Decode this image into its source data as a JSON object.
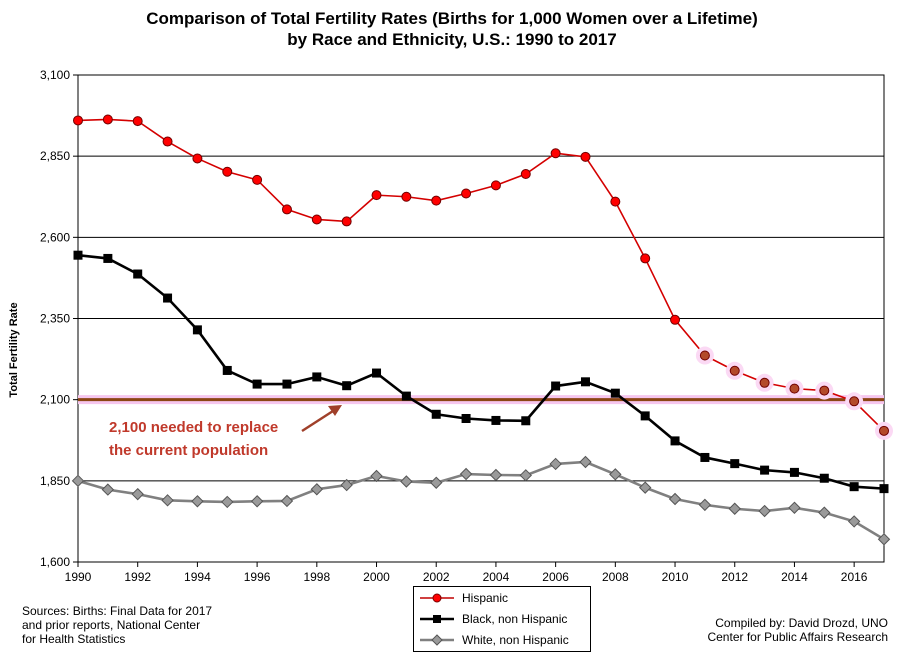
{
  "chart_data": {
    "type": "line",
    "title_line1": "Comparison of Total Fertility Rates (Births for 1,000 Women over a Lifetime)",
    "title_line2": "by Race and Ethnicity, U.S.: 1990 to 2017",
    "ylabel": "Total Fertility Rate",
    "xlim": [
      1990,
      2017
    ],
    "ylim": [
      1600,
      3100
    ],
    "x_ticks": [
      "1990",
      "1992",
      "1994",
      "1996",
      "1998",
      "2000",
      "2002",
      "2004",
      "2006",
      "2008",
      "2010",
      "2012",
      "2014",
      "2016"
    ],
    "y_ticks": [
      "1,600",
      "1,850",
      "2,100",
      "2,350",
      "2,600",
      "2,850",
      "3,100"
    ],
    "grid": "horizontal",
    "x": [
      1990,
      1991,
      1992,
      1993,
      1994,
      1995,
      1996,
      1997,
      1998,
      1999,
      2000,
      2001,
      2002,
      2003,
      2004,
      2005,
      2006,
      2007,
      2008,
      2009,
      2010,
      2011,
      2012,
      2013,
      2014,
      2015,
      2016,
      2017
    ],
    "series": [
      {
        "name": "Hispanic",
        "color": "#ff0000",
        "marker": "circle",
        "values": [
          2960,
          2963,
          2958,
          2895,
          2843,
          2802,
          2777,
          2686,
          2655,
          2649,
          2730,
          2725,
          2713,
          2735,
          2760,
          2795,
          2859,
          2848,
          2710,
          2535,
          2346,
          2236,
          2189,
          2152,
          2134,
          2128,
          2095,
          2004
        ]
      },
      {
        "name": "Black, non Hispanic",
        "color": "#000000",
        "marker": "square",
        "values": [
          2545,
          2535,
          2487,
          2413,
          2315,
          2190,
          2148,
          2148,
          2170,
          2143,
          2182,
          2111,
          2055,
          2042,
          2036,
          2035,
          2142,
          2155,
          2120,
          2050,
          1973,
          1922,
          1903,
          1883,
          1876,
          1858,
          1832,
          1826
        ]
      },
      {
        "name": "White, non Hispanic",
        "color": "#808080",
        "marker": "diamond",
        "values": [
          1850,
          1823,
          1809,
          1790,
          1787,
          1785,
          1787,
          1788,
          1824,
          1837,
          1865,
          1848,
          1844,
          1871,
          1868,
          1867,
          1902,
          1908,
          1870,
          1829,
          1794,
          1776,
          1764,
          1757,
          1767,
          1752,
          1725,
          1670
        ]
      }
    ],
    "reference_line": {
      "value": 2100,
      "color": "#8b4513",
      "label_line1": "2,100 needed to replace",
      "label_line2": "the current population"
    },
    "legend_position": "bottom-center"
  },
  "notes": {
    "source_line1": "Sources: Births: Final Data for 2017",
    "source_line2": "and prior reports, National Center",
    "source_line3": "for Health Statistics",
    "credit_line1": "Compiled by: David Drozd, UNO",
    "credit_line2": "Center for Public Affairs Research"
  }
}
